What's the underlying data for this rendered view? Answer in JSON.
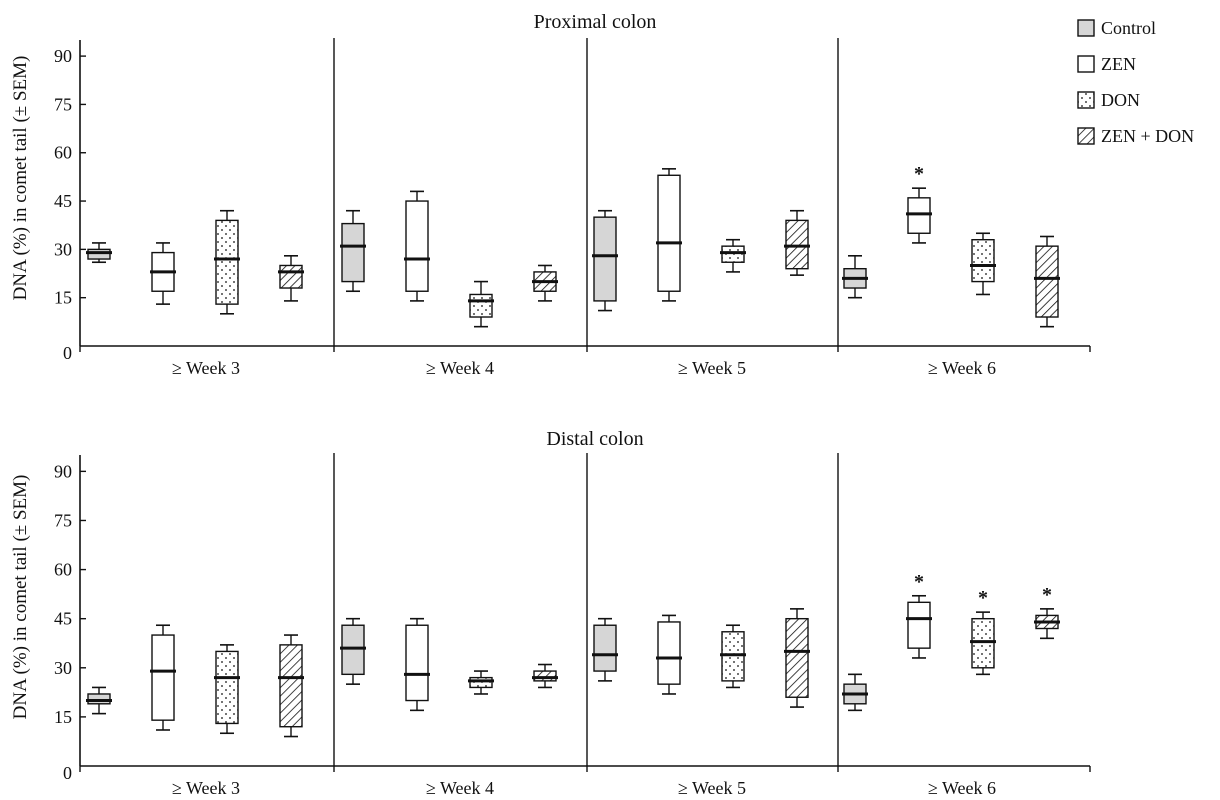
{
  "legend": {
    "entries": [
      {
        "label": "Control",
        "pattern": "solid-gray"
      },
      {
        "label": "ZEN",
        "pattern": "white"
      },
      {
        "label": "DON",
        "pattern": "dots"
      },
      {
        "label": "ZEN + DON",
        "pattern": "diagonal-hatch"
      }
    ]
  },
  "colors": {
    "control_fill": "#d6d6d6",
    "axis": "#111111",
    "line": "#111111"
  },
  "chart_data": [
    {
      "type": "box",
      "title": "Proximal colon",
      "ylabel": "DNA (%) in comet tail (± SEM)",
      "ylim": [
        0,
        95
      ],
      "yticks": [
        "0",
        "15",
        "30",
        "45",
        "60",
        "75",
        "90"
      ],
      "ytick_values": [
        0,
        15,
        30,
        45,
        60,
        75,
        90
      ],
      "groups": [
        "≥ Week 3",
        "≥ Week 4",
        "≥ Week 5",
        "≥ Week 6"
      ],
      "series_names": [
        "Control",
        "ZEN",
        "DON",
        "ZEN + DON"
      ],
      "boxes": [
        [
          {
            "whisker_low": 26,
            "q1": 27,
            "median": 29,
            "q3": 30,
            "whisker_high": 32
          },
          {
            "whisker_low": 13,
            "q1": 17,
            "median": 23,
            "q3": 29,
            "whisker_high": 32
          },
          {
            "whisker_low": 10,
            "q1": 13,
            "median": 27,
            "q3": 39,
            "whisker_high": 42
          },
          {
            "whisker_low": 14,
            "q1": 18,
            "median": 23,
            "q3": 25,
            "whisker_high": 28
          }
        ],
        [
          {
            "whisker_low": 17,
            "q1": 20,
            "median": 31,
            "q3": 38,
            "whisker_high": 42
          },
          {
            "whisker_low": 14,
            "q1": 17,
            "median": 27,
            "q3": 45,
            "whisker_high": 48
          },
          {
            "whisker_low": 6,
            "q1": 9,
            "median": 14,
            "q3": 16,
            "whisker_high": 20
          },
          {
            "whisker_low": 14,
            "q1": 17,
            "median": 20,
            "q3": 23,
            "whisker_high": 25
          }
        ],
        [
          {
            "whisker_low": 11,
            "q1": 14,
            "median": 28,
            "q3": 40,
            "whisker_high": 42
          },
          {
            "whisker_low": 14,
            "q1": 17,
            "median": 32,
            "q3": 53,
            "whisker_high": 55
          },
          {
            "whisker_low": 23,
            "q1": 26,
            "median": 29,
            "q3": 31,
            "whisker_high": 33
          },
          {
            "whisker_low": 22,
            "q1": 24,
            "median": 31,
            "q3": 39,
            "whisker_high": 42
          }
        ],
        [
          {
            "whisker_low": 15,
            "q1": 18,
            "median": 21,
            "q3": 24,
            "whisker_high": 28
          },
          {
            "whisker_low": 32,
            "q1": 35,
            "median": 41,
            "q3": 46,
            "whisker_high": 49
          },
          {
            "whisker_low": 16,
            "q1": 20,
            "median": 25,
            "q3": 33,
            "whisker_high": 35
          },
          {
            "whisker_low": 6,
            "q1": 9,
            "median": 21,
            "q3": 31,
            "whisker_high": 34
          }
        ]
      ],
      "annotations": [
        {
          "group": 3,
          "series": 1,
          "text": "*"
        }
      ]
    },
    {
      "type": "box",
      "title": "Distal colon",
      "ylabel": "DNA (%) in comet tail (± SEM)",
      "ylim": [
        0,
        95
      ],
      "yticks": [
        "0",
        "15",
        "30",
        "45",
        "60",
        "75",
        "90"
      ],
      "ytick_values": [
        0,
        15,
        30,
        45,
        60,
        75,
        90
      ],
      "groups": [
        "≥ Week 3",
        "≥ Week 4",
        "≥ Week 5",
        "≥ Week 6"
      ],
      "series_names": [
        "Control",
        "ZEN",
        "DON",
        "ZEN + DON"
      ],
      "boxes": [
        [
          {
            "whisker_low": 16,
            "q1": 19,
            "median": 20,
            "q3": 22,
            "whisker_high": 24
          },
          {
            "whisker_low": 11,
            "q1": 14,
            "median": 29,
            "q3": 40,
            "whisker_high": 43
          },
          {
            "whisker_low": 10,
            "q1": 13,
            "median": 27,
            "q3": 35,
            "whisker_high": 37
          },
          {
            "whisker_low": 9,
            "q1": 12,
            "median": 27,
            "q3": 37,
            "whisker_high": 40
          }
        ],
        [
          {
            "whisker_low": 25,
            "q1": 28,
            "median": 36,
            "q3": 43,
            "whisker_high": 45
          },
          {
            "whisker_low": 17,
            "q1": 20,
            "median": 28,
            "q3": 43,
            "whisker_high": 45
          },
          {
            "whisker_low": 22,
            "q1": 24,
            "median": 26,
            "q3": 27,
            "whisker_high": 29
          },
          {
            "whisker_low": 24,
            "q1": 26,
            "median": 27,
            "q3": 29,
            "whisker_high": 31
          }
        ],
        [
          {
            "whisker_low": 26,
            "q1": 29,
            "median": 34,
            "q3": 43,
            "whisker_high": 45
          },
          {
            "whisker_low": 22,
            "q1": 25,
            "median": 33,
            "q3": 44,
            "whisker_high": 46
          },
          {
            "whisker_low": 24,
            "q1": 26,
            "median": 34,
            "q3": 41,
            "whisker_high": 43
          },
          {
            "whisker_low": 18,
            "q1": 21,
            "median": 35,
            "q3": 45,
            "whisker_high": 48
          }
        ],
        [
          {
            "whisker_low": 17,
            "q1": 19,
            "median": 22,
            "q3": 25,
            "whisker_high": 28
          },
          {
            "whisker_low": 33,
            "q1": 36,
            "median": 45,
            "q3": 50,
            "whisker_high": 52
          },
          {
            "whisker_low": 28,
            "q1": 30,
            "median": 38,
            "q3": 45,
            "whisker_high": 47
          },
          {
            "whisker_low": 39,
            "q1": 42,
            "median": 44,
            "q3": 46,
            "whisker_high": 48
          }
        ]
      ],
      "annotations": [
        {
          "group": 3,
          "series": 1,
          "text": "*"
        },
        {
          "group": 3,
          "series": 2,
          "text": "*"
        },
        {
          "group": 3,
          "series": 3,
          "text": "*"
        }
      ]
    }
  ]
}
